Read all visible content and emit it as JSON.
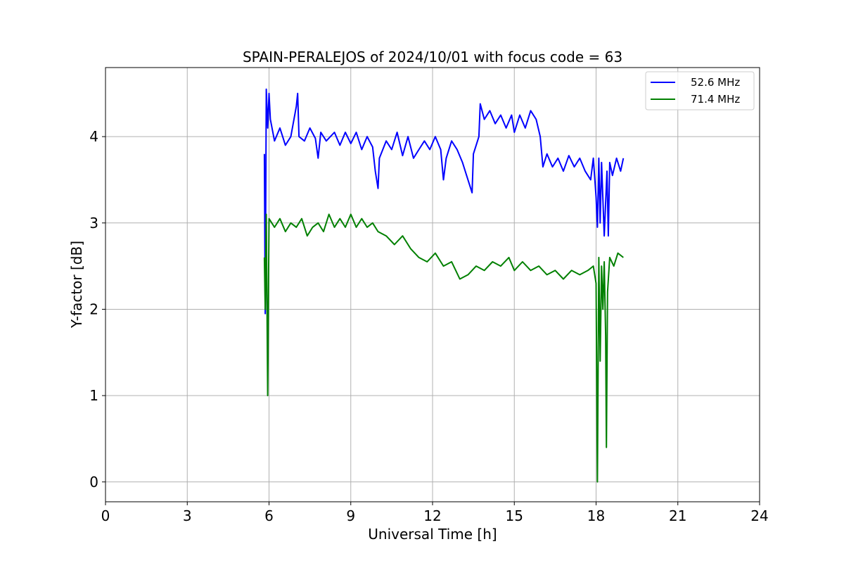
{
  "chart_data": {
    "type": "line",
    "title": "SPAIN-PERALEJOS of 2024/10/01 with focus code = 63",
    "xlabel": "Universal Time [h]",
    "ylabel": "Y-factor [dB]",
    "xlim": [
      0,
      24
    ],
    "ylim": [
      -0.23,
      4.8
    ],
    "xticks": [
      0,
      3,
      6,
      9,
      12,
      15,
      18,
      21,
      24
    ],
    "yticks": [
      0,
      1,
      2,
      3,
      4
    ],
    "grid": true,
    "legend_position": "top-right",
    "series": [
      {
        "name": "52.6 MHz",
        "color": "#0000ff",
        "points": [
          [
            5.83,
            3.8
          ],
          [
            5.86,
            1.95
          ],
          [
            5.9,
            4.55
          ],
          [
            5.95,
            4.1
          ],
          [
            6.0,
            4.5
          ],
          [
            6.05,
            4.2
          ],
          [
            6.2,
            3.95
          ],
          [
            6.4,
            4.1
          ],
          [
            6.6,
            3.9
          ],
          [
            6.8,
            4.0
          ],
          [
            7.0,
            4.35
          ],
          [
            7.05,
            4.5
          ],
          [
            7.1,
            4.0
          ],
          [
            7.3,
            3.95
          ],
          [
            7.5,
            4.1
          ],
          [
            7.7,
            3.98
          ],
          [
            7.8,
            3.75
          ],
          [
            7.9,
            4.05
          ],
          [
            8.1,
            3.95
          ],
          [
            8.4,
            4.05
          ],
          [
            8.6,
            3.9
          ],
          [
            8.8,
            4.05
          ],
          [
            9.0,
            3.92
          ],
          [
            9.2,
            4.05
          ],
          [
            9.4,
            3.85
          ],
          [
            9.6,
            4.0
          ],
          [
            9.8,
            3.88
          ],
          [
            9.9,
            3.6
          ],
          [
            10.0,
            3.4
          ],
          [
            10.05,
            3.75
          ],
          [
            10.3,
            3.95
          ],
          [
            10.5,
            3.85
          ],
          [
            10.7,
            4.05
          ],
          [
            10.9,
            3.78
          ],
          [
            11.1,
            4.0
          ],
          [
            11.3,
            3.75
          ],
          [
            11.5,
            3.85
          ],
          [
            11.7,
            3.95
          ],
          [
            11.9,
            3.85
          ],
          [
            12.1,
            4.0
          ],
          [
            12.3,
            3.85
          ],
          [
            12.4,
            3.5
          ],
          [
            12.5,
            3.75
          ],
          [
            12.7,
            3.95
          ],
          [
            12.9,
            3.85
          ],
          [
            13.1,
            3.7
          ],
          [
            13.25,
            3.55
          ],
          [
            13.35,
            3.45
          ],
          [
            13.45,
            3.35
          ],
          [
            13.5,
            3.8
          ],
          [
            13.6,
            3.9
          ],
          [
            13.7,
            4.0
          ],
          [
            13.75,
            4.38
          ],
          [
            13.9,
            4.2
          ],
          [
            14.1,
            4.3
          ],
          [
            14.3,
            4.15
          ],
          [
            14.5,
            4.25
          ],
          [
            14.7,
            4.1
          ],
          [
            14.9,
            4.25
          ],
          [
            15.0,
            4.05
          ],
          [
            15.2,
            4.25
          ],
          [
            15.4,
            4.1
          ],
          [
            15.6,
            4.3
          ],
          [
            15.8,
            4.2
          ],
          [
            15.95,
            4.0
          ],
          [
            16.05,
            3.65
          ],
          [
            16.2,
            3.8
          ],
          [
            16.4,
            3.65
          ],
          [
            16.6,
            3.75
          ],
          [
            16.8,
            3.6
          ],
          [
            17.0,
            3.78
          ],
          [
            17.2,
            3.65
          ],
          [
            17.4,
            3.75
          ],
          [
            17.6,
            3.6
          ],
          [
            17.8,
            3.5
          ],
          [
            17.9,
            3.75
          ],
          [
            18.0,
            3.3
          ],
          [
            18.05,
            2.95
          ],
          [
            18.1,
            3.75
          ],
          [
            18.15,
            3.0
          ],
          [
            18.2,
            3.7
          ],
          [
            18.3,
            2.85
          ],
          [
            18.4,
            3.6
          ],
          [
            18.45,
            2.85
          ],
          [
            18.5,
            3.7
          ],
          [
            18.6,
            3.55
          ],
          [
            18.75,
            3.75
          ],
          [
            18.9,
            3.6
          ],
          [
            19.0,
            3.75
          ]
        ]
      },
      {
        "name": "71.4 MHz",
        "color": "#008000",
        "points": [
          [
            5.83,
            2.6
          ],
          [
            5.86,
            2.0
          ],
          [
            5.9,
            3.1
          ],
          [
            5.95,
            1.0
          ],
          [
            6.0,
            3.05
          ],
          [
            6.2,
            2.95
          ],
          [
            6.4,
            3.05
          ],
          [
            6.6,
            2.9
          ],
          [
            6.8,
            3.0
          ],
          [
            7.0,
            2.95
          ],
          [
            7.2,
            3.05
          ],
          [
            7.4,
            2.85
          ],
          [
            7.6,
            2.95
          ],
          [
            7.8,
            3.0
          ],
          [
            8.0,
            2.9
          ],
          [
            8.2,
            3.1
          ],
          [
            8.4,
            2.95
          ],
          [
            8.6,
            3.05
          ],
          [
            8.8,
            2.95
          ],
          [
            9.0,
            3.1
          ],
          [
            9.2,
            2.95
          ],
          [
            9.4,
            3.05
          ],
          [
            9.6,
            2.95
          ],
          [
            9.8,
            3.0
          ],
          [
            10.0,
            2.9
          ],
          [
            10.3,
            2.85
          ],
          [
            10.6,
            2.75
          ],
          [
            10.9,
            2.85
          ],
          [
            11.2,
            2.7
          ],
          [
            11.5,
            2.6
          ],
          [
            11.8,
            2.55
          ],
          [
            12.1,
            2.65
          ],
          [
            12.4,
            2.5
          ],
          [
            12.7,
            2.55
          ],
          [
            13.0,
            2.35
          ],
          [
            13.3,
            2.4
          ],
          [
            13.6,
            2.5
          ],
          [
            13.9,
            2.45
          ],
          [
            14.2,
            2.55
          ],
          [
            14.5,
            2.5
          ],
          [
            14.8,
            2.6
          ],
          [
            15.0,
            2.45
          ],
          [
            15.3,
            2.55
          ],
          [
            15.6,
            2.45
          ],
          [
            15.9,
            2.5
          ],
          [
            16.2,
            2.4
          ],
          [
            16.5,
            2.45
          ],
          [
            16.8,
            2.35
          ],
          [
            17.1,
            2.45
          ],
          [
            17.4,
            2.4
          ],
          [
            17.7,
            2.45
          ],
          [
            17.9,
            2.5
          ],
          [
            18.0,
            2.3
          ],
          [
            18.05,
            0.0
          ],
          [
            18.1,
            2.6
          ],
          [
            18.15,
            1.4
          ],
          [
            18.2,
            2.5
          ],
          [
            18.25,
            2.0
          ],
          [
            18.3,
            2.55
          ],
          [
            18.35,
            1.7
          ],
          [
            18.38,
            0.4
          ],
          [
            18.42,
            2.2
          ],
          [
            18.5,
            2.6
          ],
          [
            18.65,
            2.5
          ],
          [
            18.8,
            2.65
          ],
          [
            19.0,
            2.6
          ]
        ]
      }
    ]
  }
}
